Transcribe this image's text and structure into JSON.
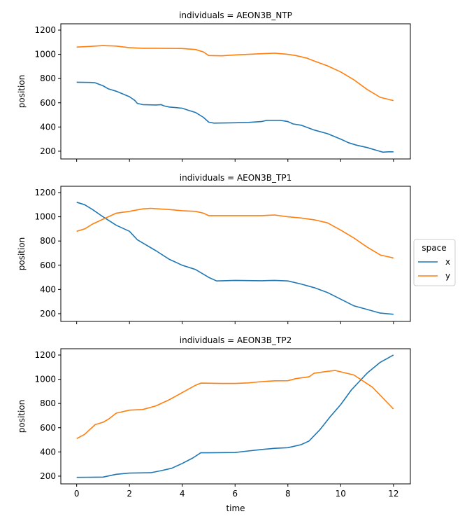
{
  "chart_data": {
    "type": "line",
    "facet_title_prefix": "individuals = ",
    "xlabel": "time",
    "ylabel": "position",
    "xlim": [
      -0.6,
      12.64
    ],
    "ylim": [
      136,
      1252
    ],
    "xticks": [
      0,
      2,
      4,
      6,
      8,
      10,
      12
    ],
    "yticks": [
      200,
      400,
      600,
      800,
      1000,
      1200
    ],
    "grid": false,
    "legend": {
      "title": "space",
      "placement": "right",
      "entries": [
        "x",
        "y"
      ]
    },
    "colors": {
      "x": "#1f77b4",
      "y": "#ff7f0e"
    },
    "panels": [
      {
        "title": "individuals = AEON3B_NTP",
        "series": [
          {
            "name": "x",
            "t": [
              0,
              0.5,
              0.7,
              1,
              1.2,
              1.5,
              2,
              2.2,
              2.3,
              2.5,
              3,
              3.2,
              3.3,
              3.5,
              4,
              4.2,
              4.5,
              4.8,
              5,
              5.2,
              6,
              6.5,
              7,
              7.2,
              7.7,
              8,
              8.2,
              8.5,
              9,
              9.5,
              10,
              10.3,
              10.6,
              11,
              11.4,
              11.6,
              11.8,
              12
            ],
            "values": [
              770,
              768,
              765,
              740,
              715,
              695,
              650,
              620,
              595,
              585,
              582,
              585,
              575,
              565,
              555,
              540,
              520,
              480,
              440,
              432,
              435,
              438,
              445,
              455,
              455,
              445,
              425,
              415,
              375,
              345,
              300,
              270,
              250,
              230,
              205,
              192,
              195,
              195
            ]
          },
          {
            "name": "y",
            "t": [
              0,
              0.5,
              1,
              1.5,
              2,
              2.5,
              3,
              4,
              4.5,
              4.8,
              5,
              5.5,
              6,
              6.5,
              7,
              7.5,
              8,
              8.3,
              8.7,
              9,
              9.5,
              10,
              10.5,
              11,
              11.5,
              12
            ],
            "values": [
              1060,
              1065,
              1072,
              1068,
              1055,
              1050,
              1050,
              1048,
              1040,
              1020,
              990,
              988,
              995,
              1000,
              1005,
              1010,
              1000,
              990,
              970,
              945,
              905,
              855,
              790,
              710,
              645,
              618
            ]
          }
        ]
      },
      {
        "title": "individuals = AEON3B_TP1",
        "series": [
          {
            "name": "x",
            "t": [
              0,
              0.3,
              0.6,
              1,
              1.5,
              2,
              2.3,
              3,
              3.5,
              4,
              4.5,
              5,
              5.3,
              6,
              7,
              7.5,
              8,
              8.5,
              9,
              9.5,
              10,
              10.5,
              11,
              11.5,
              12
            ],
            "values": [
              1120,
              1100,
              1060,
              1000,
              930,
              880,
              810,
              720,
              650,
              600,
              565,
              500,
              470,
              475,
              472,
              475,
              470,
              445,
              415,
              375,
              320,
              265,
              235,
              205,
              195
            ]
          },
          {
            "name": "y",
            "t": [
              0,
              0.3,
              0.6,
              1,
              1.5,
              2,
              2.5,
              2.8,
              3.5,
              4,
              4.5,
              4.8,
              5,
              6,
              7,
              7.5,
              8,
              8.5,
              9,
              9.5,
              10,
              10.5,
              11,
              11.5,
              12
            ],
            "values": [
              880,
              900,
              940,
              980,
              1030,
              1045,
              1065,
              1070,
              1060,
              1050,
              1045,
              1030,
              1010,
              1010,
              1010,
              1015,
              1000,
              990,
              975,
              950,
              890,
              825,
              750,
              685,
              660
            ]
          }
        ]
      },
      {
        "title": "individuals = AEON3B_TP2",
        "series": [
          {
            "name": "x",
            "t": [
              0,
              1,
              1.5,
              2,
              2.8,
              3.2,
              3.6,
              4,
              4.4,
              4.7,
              5,
              6,
              6.5,
              7,
              7.5,
              8,
              8.5,
              8.8,
              9.2,
              9.6,
              10,
              10.4,
              11,
              11.5,
              12
            ],
            "values": [
              190,
              192,
              215,
              225,
              228,
              245,
              265,
              305,
              350,
              393,
              393,
              395,
              408,
              420,
              430,
              435,
              460,
              490,
              580,
              690,
              790,
              910,
              1050,
              1140,
              1200
            ]
          },
          {
            "name": "y",
            "t": [
              0,
              0.3,
              0.7,
              1,
              1.2,
              1.5,
              2,
              2.5,
              3,
              3.5,
              4,
              4.5,
              4.7,
              5.5,
              6,
              6.5,
              7,
              7.5,
              8,
              8.3,
              8.8,
              9,
              9.5,
              9.8,
              10.5,
              11.2,
              12
            ],
            "values": [
              510,
              545,
              625,
              645,
              670,
              720,
              745,
              750,
              780,
              830,
              890,
              950,
              968,
              965,
              965,
              970,
              980,
              987,
              988,
              1005,
              1020,
              1050,
              1065,
              1072,
              1035,
              935,
              755
            ]
          }
        ]
      }
    ]
  }
}
